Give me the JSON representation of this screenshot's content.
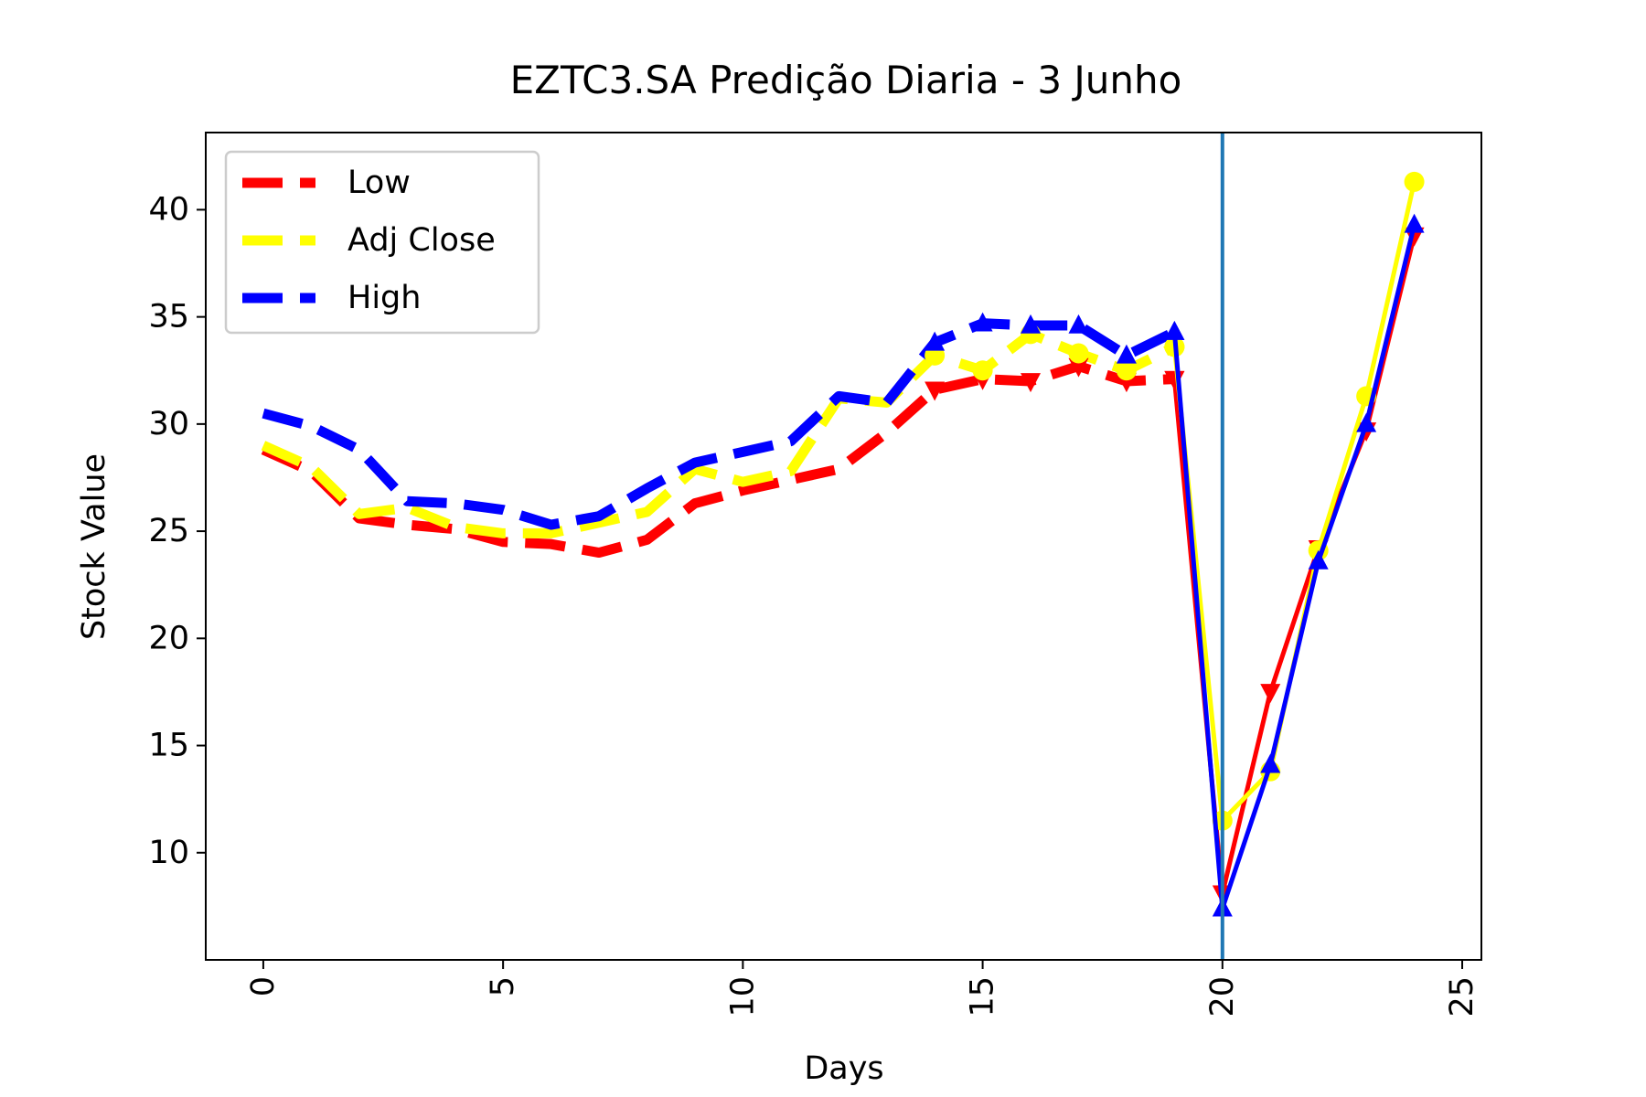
{
  "chart_data": {
    "type": "line",
    "title": "EZTC3.SA Predição Diaria - 3 Junho",
    "xlabel": "Days",
    "ylabel": "Stock Value",
    "xlim": [
      -1.2,
      25.4
    ],
    "ylim": [
      5,
      43.6
    ],
    "xticks": [
      0,
      5,
      10,
      15,
      20,
      25
    ],
    "yticks": [
      10,
      15,
      20,
      25,
      30,
      35,
      40
    ],
    "grid": false,
    "legend_position": "top-left",
    "vline": {
      "x": 20,
      "color": "#1f77b4"
    },
    "series": [
      {
        "name": "Low",
        "color": "#ff0000",
        "historical": {
          "x": [
            0,
            1,
            2,
            3,
            4,
            5,
            6,
            7,
            8,
            9,
            10,
            11,
            12,
            13,
            14,
            15,
            16,
            17,
            18,
            19
          ],
          "y": [
            28.8,
            27.8,
            25.6,
            25.3,
            25.1,
            24.5,
            24.4,
            24.0,
            24.6,
            26.3,
            26.9,
            27.4,
            27.9,
            29.6,
            31.6,
            32.1,
            32.0,
            32.7,
            32.0,
            32.1
          ]
        },
        "forecast": {
          "x": [
            19,
            20,
            21,
            22,
            23,
            24
          ],
          "y": [
            32.1,
            8.1,
            17.5,
            24.2,
            29.7,
            38.8
          ]
        },
        "marker": "triangle-down"
      },
      {
        "name": "Adj Close",
        "color": "#ffff00",
        "historical": {
          "x": [
            0,
            1,
            2,
            3,
            4,
            5,
            6,
            7,
            8,
            9,
            10,
            11,
            12,
            13,
            14,
            15,
            16,
            17,
            18,
            19
          ],
          "y": [
            29.0,
            28.0,
            25.8,
            26.1,
            25.2,
            24.9,
            24.9,
            25.4,
            25.9,
            27.9,
            27.3,
            27.8,
            31.2,
            31.0,
            33.2,
            32.5,
            34.2,
            33.3,
            32.5,
            33.6
          ]
        },
        "forecast": {
          "x": [
            19,
            20,
            21,
            22,
            23,
            24
          ],
          "y": [
            33.6,
            11.5,
            13.8,
            24.1,
            31.3,
            41.3
          ]
        },
        "marker": "circle"
      },
      {
        "name": "High",
        "color": "#0000ff",
        "historical": {
          "x": [
            0,
            1,
            2,
            3,
            4,
            5,
            6,
            7,
            8,
            9,
            10,
            11,
            12,
            13,
            14,
            15,
            16,
            17,
            18,
            19
          ],
          "y": [
            30.5,
            29.9,
            28.8,
            26.4,
            26.3,
            26.0,
            25.3,
            25.7,
            27.0,
            28.2,
            28.7,
            29.2,
            31.3,
            31.0,
            33.8,
            34.7,
            34.6,
            34.6,
            33.2,
            34.3
          ]
        },
        "forecast": {
          "x": [
            19,
            20,
            21,
            22,
            23,
            24
          ],
          "y": [
            34.3,
            7.4,
            14.1,
            23.6,
            30.0,
            39.3
          ]
        },
        "marker": "triangle-up"
      }
    ]
  }
}
